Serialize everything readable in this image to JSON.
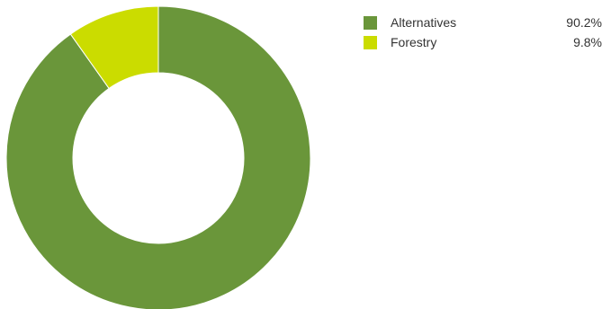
{
  "chart_data": {
    "type": "pie",
    "variant": "donut",
    "categories": [
      "Alternatives",
      "Forestry"
    ],
    "values": [
      90.2,
      9.8
    ],
    "value_labels": [
      "90.2%",
      "9.8%"
    ],
    "colors": [
      "#6a963a",
      "#cbdc00"
    ],
    "legend_position": "top-right"
  }
}
